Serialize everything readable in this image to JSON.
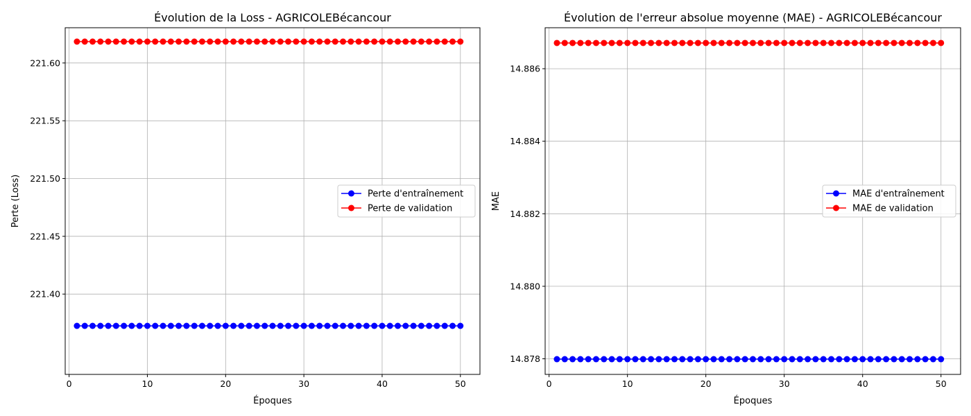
{
  "chart_data": [
    {
      "type": "line",
      "title": "Évolution de la Loss - AGRICOLEBécancour",
      "xlabel": "Époques",
      "ylabel": "Perte (Loss)",
      "xlim": [
        -0.5,
        52.5
      ],
      "ylim": [
        221.3305,
        221.6305
      ],
      "xticks": [
        0,
        10,
        20,
        30,
        40,
        50
      ],
      "yticks": [
        221.4,
        221.45,
        221.5,
        221.55,
        221.6
      ],
      "ytick_labels": [
        "221.40",
        "221.45",
        "221.50",
        "221.55",
        "221.60"
      ],
      "grid": true,
      "legend": "center-right",
      "x": [
        1,
        2,
        3,
        4,
        5,
        6,
        7,
        8,
        9,
        10,
        11,
        12,
        13,
        14,
        15,
        16,
        17,
        18,
        19,
        20,
        21,
        22,
        23,
        24,
        25,
        26,
        27,
        28,
        29,
        30,
        31,
        32,
        33,
        34,
        35,
        36,
        37,
        38,
        39,
        40,
        41,
        42,
        43,
        44,
        45,
        46,
        47,
        48,
        49,
        50
      ],
      "series": [
        {
          "name": "Perte d'entraînement",
          "color": "#0000ff",
          "marker": "circle",
          "values": [
            221.3725,
            221.3725,
            221.3725,
            221.3725,
            221.3725,
            221.3725,
            221.3725,
            221.3725,
            221.3725,
            221.3725,
            221.3725,
            221.3725,
            221.3725,
            221.3725,
            221.3725,
            221.3725,
            221.3725,
            221.3725,
            221.3725,
            221.3725,
            221.3725,
            221.3725,
            221.3725,
            221.3725,
            221.3725,
            221.3725,
            221.3725,
            221.3725,
            221.3725,
            221.3725,
            221.3725,
            221.3725,
            221.3725,
            221.3725,
            221.3725,
            221.3725,
            221.3725,
            221.3725,
            221.3725,
            221.3725,
            221.3725,
            221.3725,
            221.3725,
            221.3725,
            221.3725,
            221.3725,
            221.3725,
            221.3725,
            221.3725,
            221.3725
          ]
        },
        {
          "name": "Perte de validation",
          "color": "#ff0000",
          "marker": "circle",
          "values": [
            221.6185,
            221.6185,
            221.6185,
            221.6185,
            221.6185,
            221.6185,
            221.6185,
            221.6185,
            221.6185,
            221.6185,
            221.6185,
            221.6185,
            221.6185,
            221.6185,
            221.6185,
            221.6185,
            221.6185,
            221.6185,
            221.6185,
            221.6185,
            221.6185,
            221.6185,
            221.6185,
            221.6185,
            221.6185,
            221.6185,
            221.6185,
            221.6185,
            221.6185,
            221.6185,
            221.6185,
            221.6185,
            221.6185,
            221.6185,
            221.6185,
            221.6185,
            221.6185,
            221.6185,
            221.6185,
            221.6185,
            221.6185,
            221.6185,
            221.6185,
            221.6185,
            221.6185,
            221.6185,
            221.6185,
            221.6185,
            221.6185,
            221.6185
          ]
        }
      ]
    },
    {
      "type": "line",
      "title": "Évolution de l'erreur absolue moyenne (MAE) - AGRICOLEBécancour",
      "xlabel": "Époques",
      "ylabel": "MAE",
      "xlim": [
        -0.5,
        52.5
      ],
      "ylim": [
        14.87757,
        14.88713
      ],
      "xticks": [
        0,
        10,
        20,
        30,
        40,
        50
      ],
      "yticks": [
        14.878,
        14.88,
        14.882,
        14.884,
        14.886
      ],
      "ytick_labels": [
        "14.878",
        "14.880",
        "14.882",
        "14.884",
        "14.886"
      ],
      "grid": true,
      "legend": "center-right",
      "x": [
        1,
        2,
        3,
        4,
        5,
        6,
        7,
        8,
        9,
        10,
        11,
        12,
        13,
        14,
        15,
        16,
        17,
        18,
        19,
        20,
        21,
        22,
        23,
        24,
        25,
        26,
        27,
        28,
        29,
        30,
        31,
        32,
        33,
        34,
        35,
        36,
        37,
        38,
        39,
        40,
        41,
        42,
        43,
        44,
        45,
        46,
        47,
        48,
        49,
        50
      ],
      "series": [
        {
          "name": "MAE d'entraînement",
          "color": "#0000ff",
          "marker": "circle",
          "values": [
            14.87799,
            14.87799,
            14.87799,
            14.87799,
            14.87799,
            14.87799,
            14.87799,
            14.87799,
            14.87799,
            14.87799,
            14.87799,
            14.87799,
            14.87799,
            14.87799,
            14.87799,
            14.87799,
            14.87799,
            14.87799,
            14.87799,
            14.87799,
            14.87799,
            14.87799,
            14.87799,
            14.87799,
            14.87799,
            14.87799,
            14.87799,
            14.87799,
            14.87799,
            14.87799,
            14.87799,
            14.87799,
            14.87799,
            14.87799,
            14.87799,
            14.87799,
            14.87799,
            14.87799,
            14.87799,
            14.87799,
            14.87799,
            14.87799,
            14.87799,
            14.87799,
            14.87799,
            14.87799,
            14.87799,
            14.87799,
            14.87799,
            14.87799
          ]
        },
        {
          "name": "MAE de validation",
          "color": "#ff0000",
          "marker": "circle",
          "values": [
            14.88671,
            14.88671,
            14.88671,
            14.88671,
            14.88671,
            14.88671,
            14.88671,
            14.88671,
            14.88671,
            14.88671,
            14.88671,
            14.88671,
            14.88671,
            14.88671,
            14.88671,
            14.88671,
            14.88671,
            14.88671,
            14.88671,
            14.88671,
            14.88671,
            14.88671,
            14.88671,
            14.88671,
            14.88671,
            14.88671,
            14.88671,
            14.88671,
            14.88671,
            14.88671,
            14.88671,
            14.88671,
            14.88671,
            14.88671,
            14.88671,
            14.88671,
            14.88671,
            14.88671,
            14.88671,
            14.88671,
            14.88671,
            14.88671,
            14.88671,
            14.88671,
            14.88671,
            14.88671,
            14.88671,
            14.88671,
            14.88671,
            14.88671
          ]
        }
      ]
    }
  ]
}
